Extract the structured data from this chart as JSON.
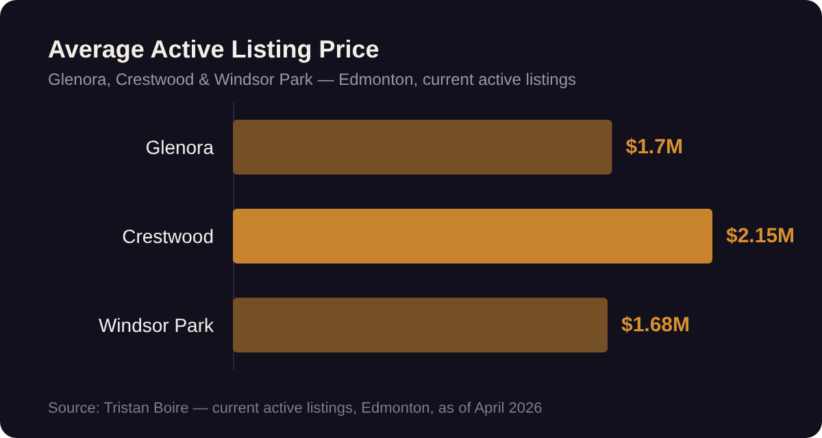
{
  "chart_data": {
    "type": "bar",
    "orientation": "horizontal",
    "title": "Average Active Listing Price",
    "subtitle": "Glenora, Crestwood & Windsor Park — Edmonton, current active listings",
    "categories": [
      "Glenora",
      "Crestwood",
      "Windsor Park"
    ],
    "values": [
      1.7,
      2.15,
      1.68
    ],
    "colors": [
      "#754f25",
      "#c8842c",
      "#754f25"
    ],
    "value_labels": [
      "$1.7M",
      "$2.15M",
      "$1.68M"
    ],
    "annotations": [
      "Source: Tristan Boire — current active listings, Edmonton, as of April 2026"
    ]
  }
}
